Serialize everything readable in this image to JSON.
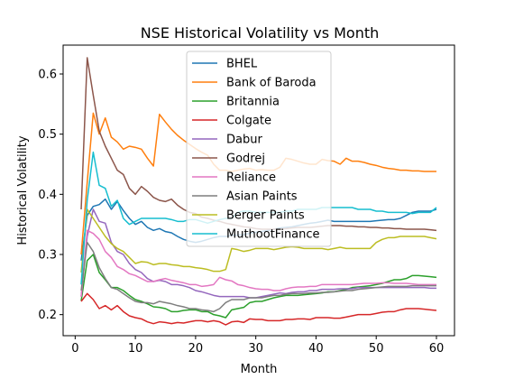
{
  "chart_data": {
    "type": "line",
    "title": "NSE Historical Volatility vs Month",
    "xlabel": "Month",
    "ylabel": "Historical Volatility",
    "xlim": [
      -2,
      63
    ],
    "ylim": [
      0.165,
      0.648
    ],
    "xticks": [
      0,
      10,
      20,
      30,
      40,
      50,
      60
    ],
    "yticks": [
      0.2,
      0.3,
      0.4,
      0.5,
      0.6
    ],
    "legend": "top-center",
    "grid": false,
    "x": [
      1,
      2,
      3,
      4,
      5,
      6,
      7,
      8,
      9,
      10,
      11,
      12,
      13,
      14,
      15,
      16,
      17,
      18,
      19,
      20,
      21,
      22,
      23,
      24,
      25,
      26,
      27,
      28,
      29,
      30,
      31,
      32,
      33,
      34,
      35,
      36,
      37,
      38,
      39,
      40,
      41,
      42,
      43,
      44,
      45,
      46,
      47,
      48,
      49,
      50,
      51,
      52,
      53,
      54,
      55,
      56,
      57,
      58,
      59,
      60
    ],
    "series": [
      {
        "name": "BHEL",
        "color": "#1f77b4",
        "values": [
          0.29,
          0.365,
          0.38,
          0.383,
          0.392,
          0.375,
          0.388,
          0.373,
          0.36,
          0.35,
          0.355,
          0.345,
          0.34,
          0.343,
          0.338,
          0.336,
          0.33,
          0.325,
          0.322,
          0.32,
          0.322,
          0.325,
          0.328,
          0.33,
          0.33,
          0.332,
          0.332,
          0.333,
          0.335,
          0.337,
          0.338,
          0.34,
          0.342,
          0.344,
          0.345,
          0.346,
          0.348,
          0.35,
          0.352,
          0.353,
          0.355,
          0.357,
          0.355,
          0.355,
          0.355,
          0.355,
          0.355,
          0.355,
          0.355,
          0.356,
          0.357,
          0.358,
          0.358,
          0.36,
          0.365,
          0.37,
          0.372,
          0.372,
          0.372,
          0.375
        ]
      },
      {
        "name": "Bank of Baroda",
        "color": "#ff7f0e",
        "values": [
          0.3,
          0.42,
          0.535,
          0.5,
          0.527,
          0.495,
          0.487,
          0.475,
          0.48,
          0.478,
          0.475,
          0.46,
          0.447,
          0.533,
          0.52,
          0.508,
          0.498,
          0.49,
          0.483,
          0.476,
          0.47,
          0.465,
          0.45,
          0.44,
          0.44,
          0.438,
          0.44,
          0.442,
          0.443,
          0.44,
          0.441,
          0.44,
          0.44,
          0.445,
          0.46,
          0.458,
          0.455,
          0.452,
          0.45,
          0.45,
          0.458,
          0.456,
          0.455,
          0.45,
          0.46,
          0.455,
          0.455,
          0.453,
          0.45,
          0.448,
          0.445,
          0.443,
          0.442,
          0.44,
          0.44,
          0.439,
          0.439,
          0.438,
          0.438,
          0.438
        ]
      },
      {
        "name": "Britannia",
        "color": "#2ca02c",
        "values": [
          0.223,
          0.29,
          0.3,
          0.27,
          0.258,
          0.245,
          0.245,
          0.24,
          0.232,
          0.225,
          0.222,
          0.218,
          0.213,
          0.212,
          0.21,
          0.205,
          0.205,
          0.207,
          0.208,
          0.208,
          0.205,
          0.205,
          0.2,
          0.198,
          0.195,
          0.208,
          0.21,
          0.212,
          0.22,
          0.222,
          0.222,
          0.225,
          0.228,
          0.23,
          0.232,
          0.232,
          0.232,
          0.233,
          0.234,
          0.235,
          0.236,
          0.238,
          0.238,
          0.24,
          0.242,
          0.245,
          0.246,
          0.247,
          0.248,
          0.25,
          0.252,
          0.255,
          0.258,
          0.258,
          0.26,
          0.265,
          0.265,
          0.264,
          0.263,
          0.262
        ]
      },
      {
        "name": "Colgate",
        "color": "#d62728",
        "values": [
          0.222,
          0.235,
          0.225,
          0.21,
          0.215,
          0.208,
          0.215,
          0.205,
          0.198,
          0.195,
          0.193,
          0.188,
          0.185,
          0.188,
          0.187,
          0.185,
          0.187,
          0.186,
          0.188,
          0.19,
          0.19,
          0.188,
          0.19,
          0.188,
          0.183,
          0.188,
          0.189,
          0.187,
          0.193,
          0.192,
          0.192,
          0.19,
          0.19,
          0.19,
          0.192,
          0.192,
          0.193,
          0.193,
          0.192,
          0.195,
          0.195,
          0.195,
          0.194,
          0.194,
          0.196,
          0.198,
          0.2,
          0.2,
          0.2,
          0.202,
          0.204,
          0.205,
          0.205,
          0.208,
          0.21,
          0.21,
          0.21,
          0.209,
          0.208,
          0.207
        ]
      },
      {
        "name": "Dabur",
        "color": "#9467bd",
        "values": [
          0.23,
          0.33,
          0.375,
          0.355,
          0.352,
          0.32,
          0.305,
          0.3,
          0.285,
          0.275,
          0.27,
          0.26,
          0.255,
          0.257,
          0.255,
          0.25,
          0.25,
          0.248,
          0.245,
          0.24,
          0.238,
          0.235,
          0.232,
          0.23,
          0.23,
          0.23,
          0.23,
          0.23,
          0.228,
          0.228,
          0.23,
          0.232,
          0.234,
          0.236,
          0.235,
          0.237,
          0.238,
          0.238,
          0.24,
          0.24,
          0.242,
          0.242,
          0.242,
          0.243,
          0.243,
          0.243,
          0.245,
          0.245,
          0.245,
          0.245,
          0.245,
          0.245,
          0.245,
          0.245,
          0.245,
          0.245,
          0.245,
          0.245,
          0.244,
          0.244
        ]
      },
      {
        "name": "Godrej",
        "color": "#8c564b",
        "values": [
          0.375,
          0.627,
          0.565,
          0.505,
          0.48,
          0.46,
          0.44,
          0.433,
          0.41,
          0.4,
          0.413,
          0.405,
          0.395,
          0.39,
          0.388,
          0.392,
          0.382,
          0.375,
          0.37,
          0.368,
          0.362,
          0.36,
          0.357,
          0.355,
          0.352,
          0.35,
          0.348,
          0.346,
          0.345,
          0.343,
          0.342,
          0.342,
          0.342,
          0.342,
          0.343,
          0.344,
          0.345,
          0.345,
          0.345,
          0.346,
          0.347,
          0.348,
          0.348,
          0.348,
          0.347,
          0.347,
          0.346,
          0.346,
          0.345,
          0.345,
          0.344,
          0.344,
          0.343,
          0.343,
          0.342,
          0.342,
          0.342,
          0.342,
          0.341,
          0.34
        ]
      },
      {
        "name": "Reliance",
        "color": "#e377c2",
        "values": [
          0.23,
          0.34,
          0.335,
          0.325,
          0.305,
          0.295,
          0.28,
          0.275,
          0.268,
          0.265,
          0.26,
          0.255,
          0.255,
          0.258,
          0.26,
          0.257,
          0.255,
          0.253,
          0.25,
          0.25,
          0.247,
          0.248,
          0.25,
          0.262,
          0.258,
          0.256,
          0.25,
          0.248,
          0.245,
          0.243,
          0.242,
          0.242,
          0.24,
          0.24,
          0.243,
          0.245,
          0.246,
          0.246,
          0.247,
          0.247,
          0.25,
          0.25,
          0.25,
          0.25,
          0.25,
          0.25,
          0.251,
          0.252,
          0.252,
          0.252,
          0.253,
          0.253,
          0.252,
          0.252,
          0.252,
          0.251,
          0.25,
          0.25,
          0.25,
          0.25
        ]
      },
      {
        "name": "Asian Paints",
        "color": "#7f7f7f",
        "values": [
          0.24,
          0.32,
          0.305,
          0.278,
          0.26,
          0.245,
          0.242,
          0.235,
          0.228,
          0.222,
          0.22,
          0.22,
          0.218,
          0.222,
          0.22,
          0.218,
          0.215,
          0.213,
          0.21,
          0.21,
          0.208,
          0.207,
          0.205,
          0.21,
          0.22,
          0.225,
          0.225,
          0.225,
          0.228,
          0.228,
          0.228,
          0.23,
          0.232,
          0.232,
          0.234,
          0.235,
          0.235,
          0.235,
          0.236,
          0.236,
          0.237,
          0.237,
          0.238,
          0.239,
          0.24,
          0.24,
          0.242,
          0.243,
          0.244,
          0.245,
          0.246,
          0.247,
          0.247,
          0.247,
          0.247,
          0.248,
          0.248,
          0.248,
          0.248,
          0.248
        ]
      },
      {
        "name": "Berger Paints",
        "color": "#bcbd22",
        "values": [
          0.27,
          0.375,
          0.36,
          0.345,
          0.33,
          0.318,
          0.31,
          0.305,
          0.295,
          0.285,
          0.288,
          0.287,
          0.283,
          0.285,
          0.285,
          0.283,
          0.282,
          0.28,
          0.28,
          0.278,
          0.277,
          0.275,
          0.272,
          0.272,
          0.275,
          0.31,
          0.308,
          0.305,
          0.307,
          0.31,
          0.31,
          0.31,
          0.308,
          0.31,
          0.312,
          0.313,
          0.312,
          0.31,
          0.31,
          0.31,
          0.31,
          0.308,
          0.31,
          0.312,
          0.31,
          0.31,
          0.31,
          0.31,
          0.31,
          0.32,
          0.325,
          0.328,
          0.328,
          0.33,
          0.33,
          0.33,
          0.33,
          0.33,
          0.328,
          0.326
        ]
      },
      {
        "name": "MuthootFinance",
        "color": "#17becf",
        "values": [
          0.25,
          0.39,
          0.47,
          0.415,
          0.41,
          0.38,
          0.39,
          0.36,
          0.35,
          0.355,
          0.36,
          0.36,
          0.36,
          0.36,
          0.36,
          0.358,
          0.355,
          0.355,
          0.358,
          0.358,
          0.355,
          0.352,
          0.355,
          0.358,
          0.36,
          0.36,
          0.37,
          0.372,
          0.372,
          0.37,
          0.37,
          0.37,
          0.37,
          0.37,
          0.372,
          0.372,
          0.375,
          0.375,
          0.375,
          0.375,
          0.378,
          0.378,
          0.378,
          0.378,
          0.378,
          0.378,
          0.375,
          0.375,
          0.375,
          0.372,
          0.372,
          0.37,
          0.37,
          0.37,
          0.37,
          0.368,
          0.37,
          0.37,
          0.37,
          0.378
        ]
      }
    ]
  }
}
